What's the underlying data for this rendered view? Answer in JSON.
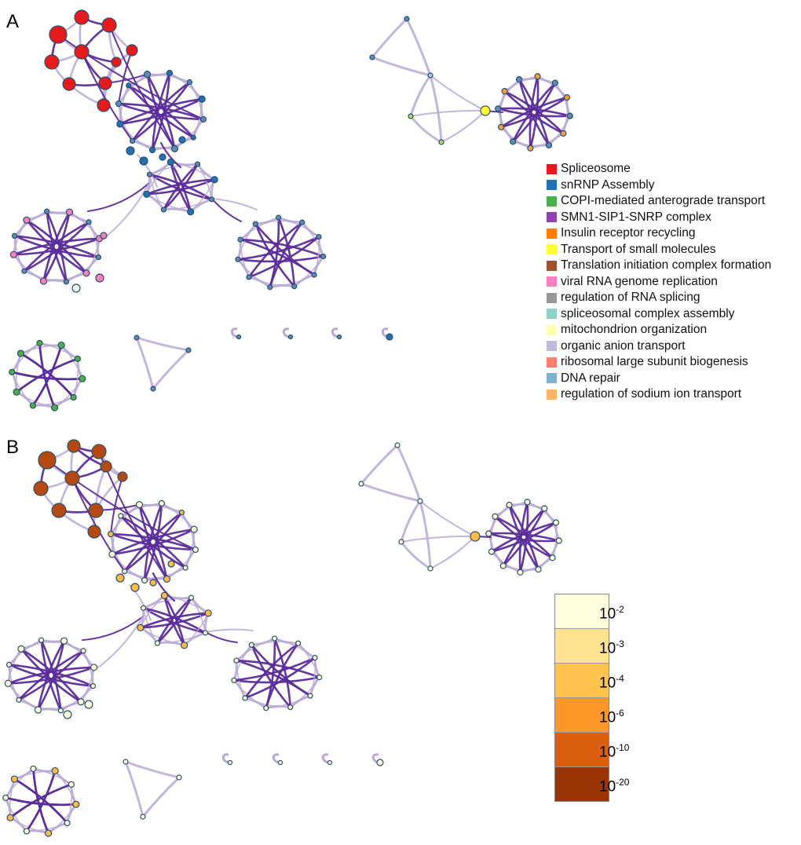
{
  "panels": {
    "a": "A",
    "b": "B"
  },
  "legend": [
    {
      "label": "Spliceosome",
      "color": "#e41a1c"
    },
    {
      "label": "snRNP Assembly",
      "color": "#2171b5"
    },
    {
      "label": "COPI-mediated anterograde transport",
      "color": "#4daf4a"
    },
    {
      "label": "SMN1-SIP1-SNRP complex",
      "color": "#8e44ad"
    },
    {
      "label": "Insulin receptor recycling",
      "color": "#ff7f00"
    },
    {
      "label": "Transport of small molecules",
      "color": "#ffff33"
    },
    {
      "label": "Translation initiation complex formation",
      "color": "#a0522d"
    },
    {
      "label": "viral RNA genome replication",
      "color": "#f781bf"
    },
    {
      "label": "regulation of RNA splicing",
      "color": "#999999"
    },
    {
      "label": "spliceosomal complex assembly",
      "color": "#8dd3c7"
    },
    {
      "label": "mitochondrion organization",
      "color": "#ffffb3"
    },
    {
      "label": "organic anion transport",
      "color": "#bebada"
    },
    {
      "label": "ribosomal large subunit biogenesis",
      "color": "#fb8072"
    },
    {
      "label": "DNA repair",
      "color": "#80b1d3"
    },
    {
      "label": "regulation of sodium ion transport",
      "color": "#fdb462"
    }
  ],
  "colorbar": [
    {
      "base": "10",
      "exp": "-2",
      "color": "#ffffdd"
    },
    {
      "base": "10",
      "exp": "-3",
      "color": "#fee391"
    },
    {
      "base": "10",
      "exp": "-4",
      "color": "#fec44f"
    },
    {
      "base": "10",
      "exp": "-6",
      "color": "#fe9929"
    },
    {
      "base": "10",
      "exp": "-10",
      "color": "#d95f0e"
    },
    {
      "base": "10",
      "exp": "-20",
      "color": "#993404"
    }
  ],
  "colors": {
    "edge_light": "#b8a9d6",
    "edge_dark": "#5b2c9a",
    "node_stroke": "#2a4d69",
    "a_cluster1": "#e41a1c",
    "a_cluster2": "#2171b5",
    "a_green": "#4daf4a",
    "a_yellow": "#ffff33",
    "a_pink": "#f781bf",
    "a_default": "#5b8db8",
    "b_dark": "#b44a12",
    "b_mid": "#fdbb4a",
    "b_light": "#ffffdd"
  }
}
